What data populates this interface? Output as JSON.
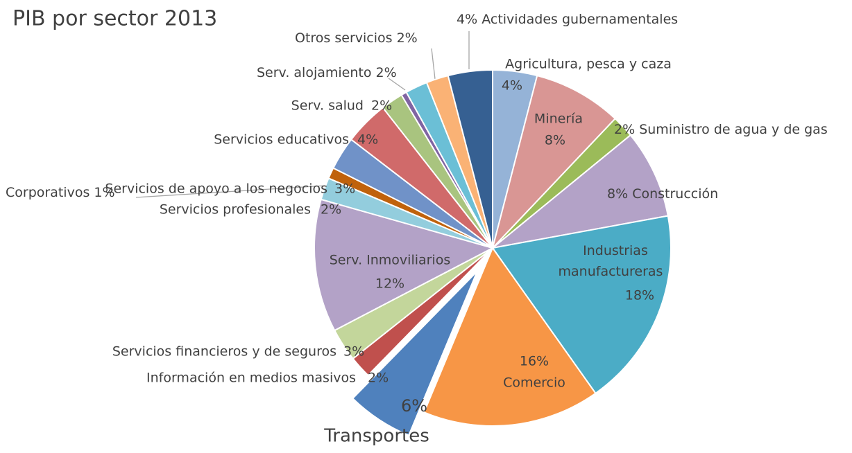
{
  "chart_data": {
    "type": "pie",
    "title": "PIB por sector 2013",
    "categories": [
      "Agricultura, pesca y caza",
      "Minería",
      "Suministro de agua y de gas",
      "Construcción",
      "Industrias manufactureras",
      "Comercio",
      "Transportes",
      "Información en medios masivos",
      "Servicios financieros y de seguros",
      "Serv. Inmoviliarios",
      "Servicios profesionales",
      "Corporativos",
      "Servicios de apoyo a los negocios",
      "Servicios educativos",
      "Serv. salud",
      null,
      "Serv. alojamiento",
      "Otros servicios",
      "Actividades gubernamentales"
    ],
    "values": [
      4,
      8,
      2,
      8,
      18,
      16,
      6,
      2,
      3,
      12,
      2,
      1,
      3,
      4,
      2,
      0.5,
      2,
      2,
      4
    ],
    "value_labels": [
      "4%",
      "8%",
      "2%",
      "8%",
      "18%",
      "16%",
      "6%",
      "2%",
      "3%",
      "12%",
      "2%",
      "1%",
      "3%",
      "4%",
      "2%",
      null,
      "2%",
      "2%",
      "4%"
    ],
    "colors": [
      "#95b3d7",
      "#d99694",
      "#9bbb59",
      "#b3a2c7",
      "#4bacc6",
      "#f79646",
      "#4f81bd",
      "#c0504d",
      "#c3d69b",
      "#b3a2c7",
      "#93cddd",
      "#c0620c",
      "#7092c8",
      "#d06a6a",
      "#a9c47f",
      "#8064a2",
      "#6bbfd6",
      "#fab275",
      "#366092"
    ]
  }
}
